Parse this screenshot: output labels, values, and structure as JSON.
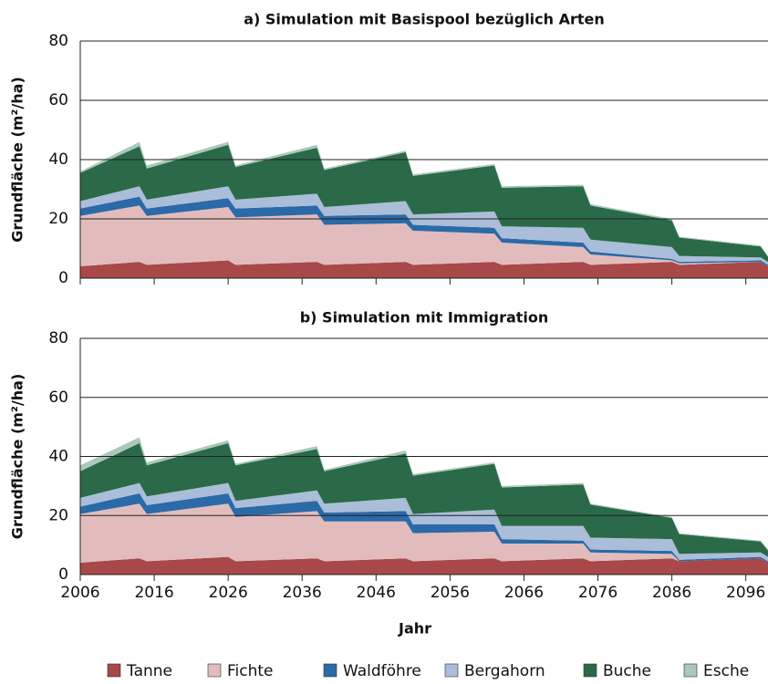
{
  "chart_data": [
    {
      "type": "stacked-area",
      "title": "a) Simulation mit Basispool bezüglich Arten",
      "ylabel": "Grundfläche (m²/ha)",
      "x": [
        2006,
        2014,
        2015,
        2026,
        2027,
        2038,
        2039,
        2050,
        2051,
        2062,
        2063,
        2074,
        2075,
        2086,
        2087,
        2098,
        2099
      ],
      "xlim": [
        2006,
        2099
      ],
      "xticks": [
        2006,
        2016,
        2026,
        2036,
        2046,
        2056,
        2066,
        2076,
        2086,
        2096
      ],
      "ylim": [
        0,
        80
      ],
      "yticks": [
        0,
        20,
        40,
        60,
        80
      ],
      "grid": true,
      "series": [
        {
          "name": "Tanne",
          "color": "#a84848",
          "values": [
            4,
            5.5,
            4.5,
            6,
            4.5,
            5.5,
            4.5,
            5.5,
            4.5,
            5.5,
            4.5,
            5.5,
            4.5,
            5.5,
            4.5,
            5.5,
            4
          ]
        },
        {
          "name": "Fichte",
          "color": "#e2bcbc",
          "values": [
            17,
            19,
            16.5,
            18,
            16,
            16,
            13.5,
            13,
            11.5,
            9.5,
            7.5,
            5,
            3.5,
            0.5,
            0.5,
            0,
            0
          ]
        },
        {
          "name": "Waldföhre",
          "color": "#2a6aa8",
          "values": [
            2.5,
            3,
            2.5,
            3,
            3,
            3,
            3,
            3,
            2,
            2,
            1.5,
            1.5,
            1,
            0.5,
            0.5,
            0.5,
            0.5
          ]
        },
        {
          "name": "Bergahorn",
          "color": "#aabdd9",
          "values": [
            2.5,
            3.5,
            3,
            4,
            3,
            4,
            3,
            4.5,
            3.5,
            5.5,
            4,
            5,
            4,
            4,
            2,
            1,
            1
          ]
        },
        {
          "name": "Buche",
          "color": "#2a6a48",
          "values": [
            9.5,
            13.5,
            10.5,
            14,
            11,
            15.5,
            12.5,
            16.5,
            13,
            15.5,
            13,
            14,
            11.5,
            9,
            6.2,
            3.7,
            1.7
          ]
        },
        {
          "name": "Esche",
          "color": "#a9c9b9",
          "values": [
            0.5,
            1.5,
            1,
            1,
            0.5,
            1,
            0.5,
            0.5,
            0.5,
            0.5,
            0.5,
            0.5,
            0.5,
            0.5,
            0.3,
            0.3,
            0.3
          ]
        }
      ]
    },
    {
      "type": "stacked-area",
      "title": "b) Simulation mit Immigration",
      "ylabel": "Grundfläche (m²/ha)",
      "xlabel": "Jahr",
      "x": [
        2006,
        2014,
        2015,
        2026,
        2027,
        2038,
        2039,
        2050,
        2051,
        2062,
        2063,
        2074,
        2075,
        2086,
        2087,
        2098,
        2099
      ],
      "xlim": [
        2006,
        2099
      ],
      "xticks": [
        2006,
        2016,
        2026,
        2036,
        2046,
        2056,
        2066,
        2076,
        2086,
        2096
      ],
      "ylim": [
        0,
        80
      ],
      "yticks": [
        0,
        20,
        40,
        60,
        80
      ],
      "grid": true,
      "series": [
        {
          "values": [
            4,
            5.5,
            4.5,
            6,
            4.5,
            5.5,
            4.5,
            5.5,
            4.5,
            5.5,
            4.5,
            5.5,
            4.5,
            5.5,
            4.5,
            5.5,
            4
          ]
        },
        {
          "values": [
            16.5,
            18.5,
            16,
            18,
            15,
            16,
            13.5,
            12.5,
            9.5,
            9,
            6,
            5,
            3,
            1.5,
            0,
            0,
            0
          ]
        },
        {
          "values": [
            2.5,
            3.5,
            3,
            3.5,
            3,
            3.5,
            3,
            3.5,
            3,
            2.5,
            1.5,
            1,
            1,
            1,
            0.5,
            0.5,
            0.5
          ]
        },
        {
          "values": [
            3,
            3.5,
            3,
            3.5,
            2.5,
            3.5,
            3,
            4.5,
            3.5,
            5,
            4.5,
            5,
            4,
            4,
            2,
            1.5,
            1.5
          ]
        },
        {
          "values": [
            9,
            13.5,
            10.5,
            13.5,
            12,
            14,
            11,
            15,
            13,
            15.5,
            13,
            14,
            11.2,
            7.2,
            6.7,
            3.7,
            2.2
          ]
        },
        {
          "values": [
            2,
            2,
            1,
            1,
            0.5,
            1,
            0.5,
            1,
            0.5,
            0.5,
            0.5,
            0.5,
            0.3,
            0.3,
            0.3,
            0.3,
            0.3
          ]
        }
      ]
    }
  ]
}
